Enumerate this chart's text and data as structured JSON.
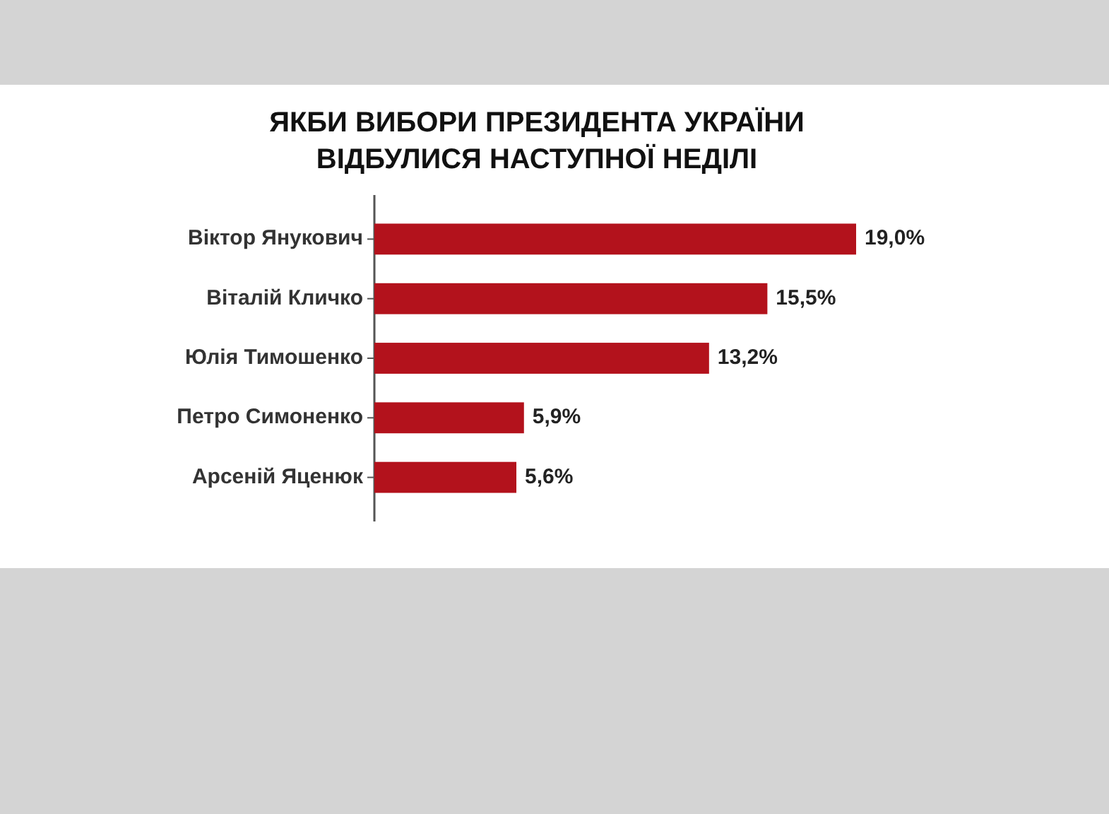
{
  "chart_data": {
    "type": "bar",
    "orientation": "horizontal",
    "title": "ЯКБИ ВИБОРИ ПРЕЗИДЕНТА УКРАЇНИ\nВІДБУЛИСЯ НАСТУПНОЇ НЕДІЛІ",
    "categories": [
      "Віктор Янукович",
      "Віталій Кличко",
      "Юлія Тимошенко",
      "Петро Симоненко",
      "Арсеній Яценюк"
    ],
    "values": [
      19.0,
      15.5,
      13.2,
      5.9,
      5.6
    ],
    "value_labels": [
      "19,0%",
      "15,5%",
      "13,2%",
      "5,9%",
      "5,6%"
    ],
    "color": "#b3121c"
  }
}
